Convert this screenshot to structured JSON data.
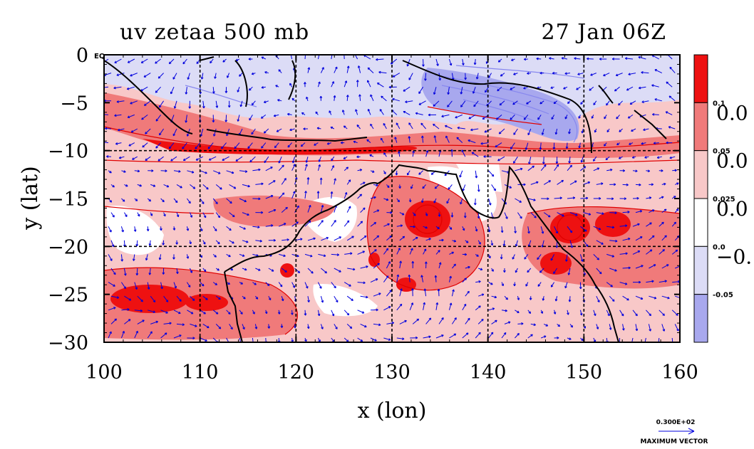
{
  "chart_data": {
    "type": "heatmap",
    "title_left": "uv zetaa 500 mb",
    "title_right": "27 Jan 06Z",
    "xlabel": "x (lon)",
    "ylabel": "y (lat)",
    "xlim": [
      100,
      160
    ],
    "ylim": [
      -30,
      0
    ],
    "x_ticks": [
      "100",
      "110",
      "120",
      "130",
      "140",
      "150",
      "160"
    ],
    "x_tick_values": [
      100,
      110,
      120,
      130,
      140,
      150,
      160
    ],
    "y_ticks": [
      "0",
      "−5",
      "−10",
      "−15",
      "−20",
      "−25",
      "−30"
    ],
    "y_tick_values": [
      0,
      -5,
      -10,
      -15,
      -20,
      -25,
      -30
    ],
    "grid_lon": [
      110,
      120,
      130,
      140,
      150
    ],
    "grid_lat": [
      -10,
      -20
    ],
    "colorbar": {
      "colors": [
        "#ee1111",
        "#f07a7a",
        "#f8c8c8",
        "#ffffff",
        "#dcdcf6",
        "#a8a8ee"
      ],
      "small_labels": [
        "0.1",
        "0.05",
        "0.025",
        "0.0",
        "-0.05"
      ],
      "large_labels": [
        "0.0",
        "0.0",
        "0.0",
        "−0."
      ]
    },
    "max_vector_value": "0.300E+02",
    "max_vector_label": "MAXIMUM VECTOR",
    "corner_label": "EQ",
    "colors": {
      "strong_pos": "#ee1111",
      "mid_pos": "#f07a7a",
      "weak_pos": "#f8c8c8",
      "neutral": "#ffffff",
      "weak_neg": "#dcdcf6",
      "strong_neg": "#a8a8ee",
      "contour_red": "#e00000",
      "contour_blue": "#8888ee",
      "vector": "#0000dd"
    }
  }
}
